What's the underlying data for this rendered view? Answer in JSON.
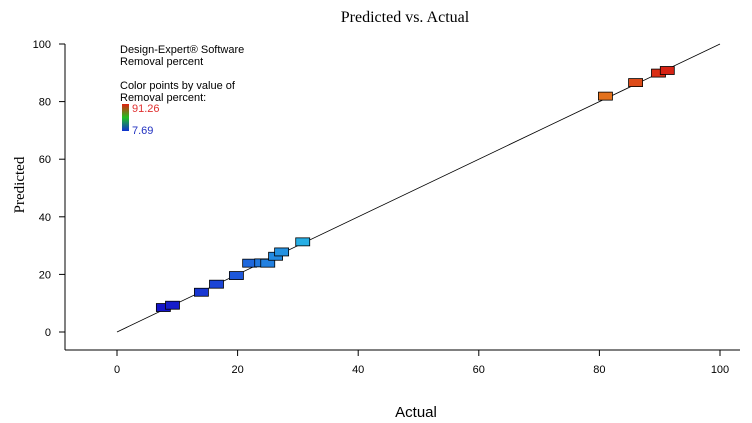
{
  "chart_data": {
    "type": "scatter",
    "title": "Predicted vs. Actual",
    "xlabel": "Actual",
    "ylabel": "Predicted",
    "xlim": [
      0,
      100
    ],
    "ylim": [
      0,
      100
    ],
    "xticks": [
      0,
      20,
      40,
      60,
      80,
      100
    ],
    "yticks": [
      0,
      20,
      40,
      60,
      80,
      100
    ],
    "reference_line": {
      "from": [
        0,
        0
      ],
      "to": [
        100,
        100
      ]
    },
    "annotations": {
      "line1": "Design-Expert® Software",
      "line2": "Removal percent",
      "line3": "Color points by value of",
      "line4": "Removal percent:",
      "max_label": "91.26",
      "min_label": "7.69"
    },
    "color_scale": {
      "min": 7.69,
      "max": 91.26
    },
    "points": [
      {
        "x": 7.69,
        "y": 8.5
      },
      {
        "x": 9.2,
        "y": 9.3
      },
      {
        "x": 14.0,
        "y": 13.8
      },
      {
        "x": 16.5,
        "y": 16.6
      },
      {
        "x": 19.8,
        "y": 19.6
      },
      {
        "x": 22.0,
        "y": 23.9
      },
      {
        "x": 24.0,
        "y": 24.0
      },
      {
        "x": 25.0,
        "y": 23.9
      },
      {
        "x": 26.3,
        "y": 26.3
      },
      {
        "x": 27.3,
        "y": 27.8
      },
      {
        "x": 30.8,
        "y": 31.3
      },
      {
        "x": 81.0,
        "y": 81.9
      },
      {
        "x": 86.0,
        "y": 86.6
      },
      {
        "x": 89.8,
        "y": 89.9
      },
      {
        "x": 91.26,
        "y": 90.8
      }
    ]
  }
}
